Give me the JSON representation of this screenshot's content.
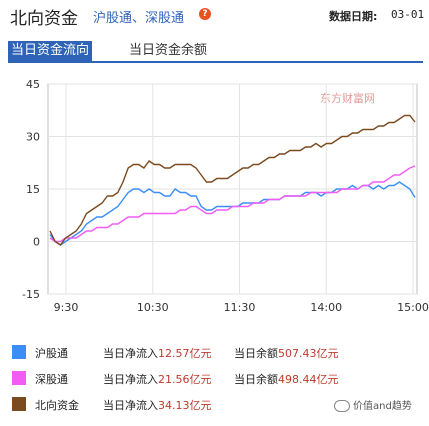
{
  "header": {
    "title": "北向资金",
    "subtitle": "沪股通、深股通",
    "help_symbol": "?",
    "date_label": "数据日期:",
    "date_value": "03-01"
  },
  "tabs": [
    {
      "label": "当日资金流向",
      "active": true
    },
    {
      "label": "当日资金余额",
      "active": false
    }
  ],
  "watermark": "东方财富网",
  "chart_data": {
    "type": "line",
    "y_ticks": [
      "45",
      "30",
      "15",
      "0",
      "-15"
    ],
    "x_ticks": [
      "9:30",
      "10:30",
      "11:30",
      "14:00",
      "15:00"
    ],
    "ylim": [
      -15,
      45
    ],
    "grid": true,
    "series": [
      {
        "name": "沪股通",
        "color": "#3a8ef6",
        "values": [
          2,
          0,
          -1,
          0,
          1,
          2,
          3,
          5,
          6,
          7,
          7,
          8,
          9,
          10,
          12,
          14,
          15,
          15,
          14,
          15,
          14,
          14,
          13,
          13,
          15,
          14,
          14,
          13,
          13,
          10,
          9,
          9,
          10,
          10,
          10,
          10,
          10,
          11,
          11,
          11,
          11,
          12,
          12,
          12,
          12,
          13,
          13,
          13,
          13,
          14,
          14,
          14,
          13,
          14,
          14,
          15,
          15,
          15,
          16,
          15,
          16,
          16,
          15,
          16,
          15,
          16,
          16,
          17,
          16,
          15,
          12.57
        ]
      },
      {
        "name": "深股通",
        "color": "#f25cf5",
        "values": [
          1,
          0,
          0,
          1,
          1,
          1,
          2,
          3,
          3,
          4,
          4,
          4,
          5,
          5,
          6,
          7,
          7,
          7,
          8,
          8,
          8,
          8,
          8,
          8,
          8,
          9,
          9,
          10,
          10,
          9,
          8,
          8,
          9,
          9,
          9,
          10,
          10,
          10,
          10,
          11,
          11,
          11,
          12,
          12,
          12,
          13,
          13,
          13,
          13,
          13,
          14,
          14,
          14,
          14,
          14,
          14,
          15,
          15,
          15,
          15,
          16,
          16,
          17,
          17,
          17,
          18,
          19,
          19,
          20,
          21,
          21.56
        ]
      },
      {
        "name": "北向资金",
        "color": "#7b4a1e",
        "values": [
          3,
          0,
          -1,
          1,
          2,
          3,
          5,
          8,
          9,
          10,
          11,
          13,
          13,
          14,
          17,
          21,
          22,
          22,
          21,
          23,
          22,
          22,
          21,
          21,
          22,
          22,
          22,
          22,
          21,
          19,
          17,
          17,
          18,
          18,
          18,
          19,
          20,
          21,
          21,
          22,
          22,
          23,
          24,
          24,
          25,
          25,
          26,
          26,
          26,
          27,
          27,
          28,
          27,
          28,
          28,
          29,
          30,
          30,
          31,
          31,
          32,
          32,
          32,
          33,
          33,
          34,
          34,
          35,
          36,
          36,
          34.13
        ]
      }
    ]
  },
  "legend": [
    {
      "name": "沪股通",
      "color": "#3a8ef6",
      "flow_label": "当日净流入",
      "flow_value": "12.57亿元",
      "balance_label": "当日余额",
      "balance_value": "507.43亿元"
    },
    {
      "name": "深股通",
      "color": "#f25cf5",
      "flow_label": "当日净流入",
      "flow_value": "21.56亿元",
      "balance_label": "当日余额",
      "balance_value": "498.44亿元"
    },
    {
      "name": "北向资金",
      "color": "#7b4a1e",
      "flow_label": "当日净流入",
      "flow_value": "34.13亿元"
    }
  ],
  "footer_watermark": "价值and趋势"
}
